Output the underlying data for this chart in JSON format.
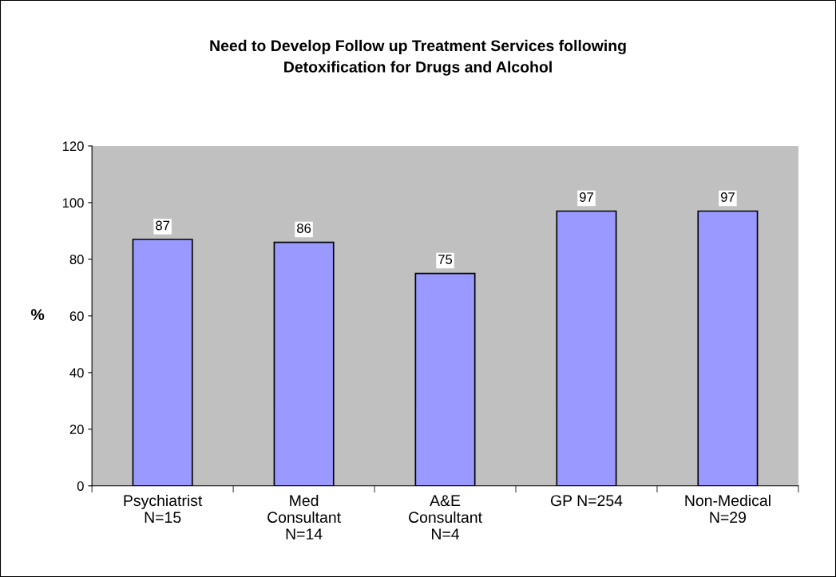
{
  "chart_data": {
    "type": "bar",
    "title": "Need to Develop Follow up Treatment Services following\nDetoxification for Drugs and Alcohol",
    "ylabel": "%",
    "categories": [
      "Psychiatrist\nN=15",
      "Med\nConsultant\nN=14",
      "A&E\nConsultant\nN=4",
      "GP N=254",
      "Non-Medical\nN=29"
    ],
    "values": [
      87,
      86,
      75,
      97,
      97
    ],
    "color": "#9999ff",
    "ylim": [
      0,
      120
    ],
    "yticks": [
      0,
      20,
      40,
      60,
      80,
      100,
      120
    ],
    "grid": false,
    "data_labels": true
  }
}
